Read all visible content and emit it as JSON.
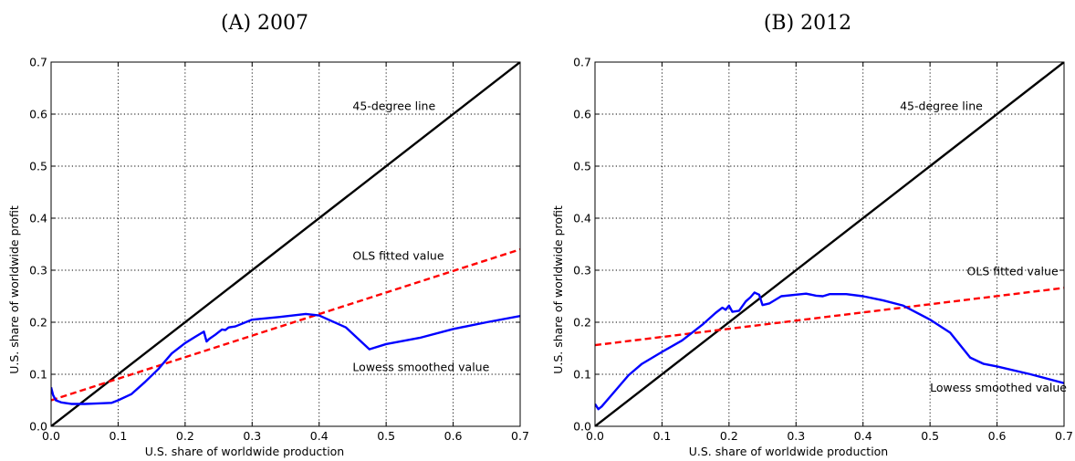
{
  "chart_data": [
    {
      "type": "line",
      "title": "(A) 2007",
      "xlabel": "U.S. share of worldwide production",
      "ylabel": "U.S. share of worldwide profit",
      "xlim": [
        0.0,
        0.7
      ],
      "ylim": [
        0.0,
        0.7
      ],
      "xticks": [
        0.0,
        0.1,
        0.2,
        0.3,
        0.4,
        0.5,
        0.6,
        0.7
      ],
      "yticks": [
        0.0,
        0.1,
        0.2,
        0.3,
        0.4,
        0.5,
        0.6,
        0.7
      ],
      "grid": true,
      "series": [
        {
          "name": "45-degree line",
          "color": "#000000",
          "style": "solid",
          "x": [
            0.0,
            0.7
          ],
          "y": [
            0.0,
            0.7
          ]
        },
        {
          "name": "OLS fitted value",
          "color": "#ff0000",
          "style": "dashed",
          "x": [
            0.0,
            0.7
          ],
          "y": [
            0.05,
            0.34
          ]
        },
        {
          "name": "Lowess smoothed value",
          "color": "#0000ff",
          "style": "solid",
          "x": [
            0.0,
            0.003,
            0.007,
            0.015,
            0.03,
            0.05,
            0.07,
            0.09,
            0.1,
            0.12,
            0.14,
            0.16,
            0.18,
            0.2,
            0.215,
            0.228,
            0.232,
            0.236,
            0.245,
            0.255,
            0.26,
            0.265,
            0.275,
            0.3,
            0.34,
            0.38,
            0.4,
            0.44,
            0.475,
            0.5,
            0.55,
            0.6,
            0.65,
            0.7
          ],
          "y": [
            0.075,
            0.06,
            0.05,
            0.046,
            0.043,
            0.043,
            0.044,
            0.045,
            0.05,
            0.062,
            0.085,
            0.11,
            0.14,
            0.16,
            0.172,
            0.182,
            0.163,
            0.168,
            0.176,
            0.186,
            0.185,
            0.19,
            0.192,
            0.205,
            0.21,
            0.216,
            0.213,
            0.19,
            0.148,
            0.158,
            0.17,
            0.187,
            0.2,
            0.212
          ]
        }
      ],
      "annotations": [
        {
          "text": "45-degree line",
          "x": 0.45,
          "y": 0.608
        },
        {
          "text": "OLS fitted value",
          "x": 0.45,
          "y": 0.32
        },
        {
          "text": "Lowess smoothed value",
          "x": 0.45,
          "y": 0.106
        }
      ]
    },
    {
      "type": "line",
      "title": "(B) 2012",
      "xlabel": "U.S. share of worldwide production",
      "ylabel": "U.S. share of worldwide profit",
      "xlim": [
        0.0,
        0.7
      ],
      "ylim": [
        0.0,
        0.7
      ],
      "xticks": [
        0.0,
        0.1,
        0.2,
        0.3,
        0.4,
        0.5,
        0.6,
        0.7
      ],
      "yticks": [
        0.0,
        0.1,
        0.2,
        0.3,
        0.4,
        0.5,
        0.6,
        0.7
      ],
      "grid": true,
      "series": [
        {
          "name": "45-degree line",
          "color": "#000000",
          "style": "solid",
          "x": [
            0.0,
            0.7
          ],
          "y": [
            0.0,
            0.7
          ]
        },
        {
          "name": "OLS fitted value",
          "color": "#ff0000",
          "style": "dashed",
          "x": [
            0.0,
            0.7
          ],
          "y": [
            0.156,
            0.266
          ]
        },
        {
          "name": "Lowess smoothed value",
          "color": "#0000ff",
          "style": "solid",
          "x": [
            0.0,
            0.005,
            0.01,
            0.03,
            0.05,
            0.07,
            0.1,
            0.13,
            0.16,
            0.18,
            0.19,
            0.195,
            0.2,
            0.205,
            0.215,
            0.225,
            0.232,
            0.238,
            0.245,
            0.25,
            0.26,
            0.278,
            0.3,
            0.315,
            0.33,
            0.34,
            0.35,
            0.375,
            0.4,
            0.43,
            0.46,
            0.5,
            0.53,
            0.56,
            0.58,
            0.6,
            0.65,
            0.7
          ],
          "y": [
            0.043,
            0.033,
            0.038,
            0.068,
            0.098,
            0.12,
            0.143,
            0.165,
            0.195,
            0.218,
            0.228,
            0.224,
            0.232,
            0.22,
            0.222,
            0.24,
            0.248,
            0.257,
            0.253,
            0.233,
            0.236,
            0.25,
            0.253,
            0.255,
            0.251,
            0.25,
            0.254,
            0.254,
            0.25,
            0.242,
            0.232,
            0.205,
            0.18,
            0.132,
            0.12,
            0.115,
            0.1,
            0.083
          ]
        }
      ],
      "annotations": [
        {
          "text": "45-degree line",
          "x": 0.455,
          "y": 0.608
        },
        {
          "text": "OLS fitted value",
          "x": 0.555,
          "y": 0.29
        },
        {
          "text": "Lowess smoothed value",
          "x": 0.5,
          "y": 0.067
        }
      ]
    }
  ]
}
